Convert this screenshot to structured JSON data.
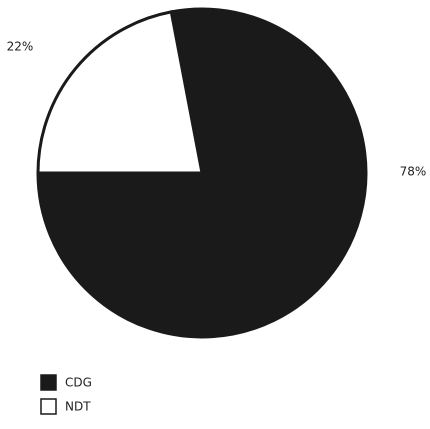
{
  "chart_data": {
    "type": "pie",
    "categories": [
      "CDG",
      "NDT"
    ],
    "values": [
      78,
      22
    ],
    "value_labels": [
      "78%",
      "22%"
    ],
    "colors": [
      "#1a1a1a",
      "#ffffff"
    ],
    "edge_color": "#1a1a1a",
    "legend": "bottom-left"
  }
}
